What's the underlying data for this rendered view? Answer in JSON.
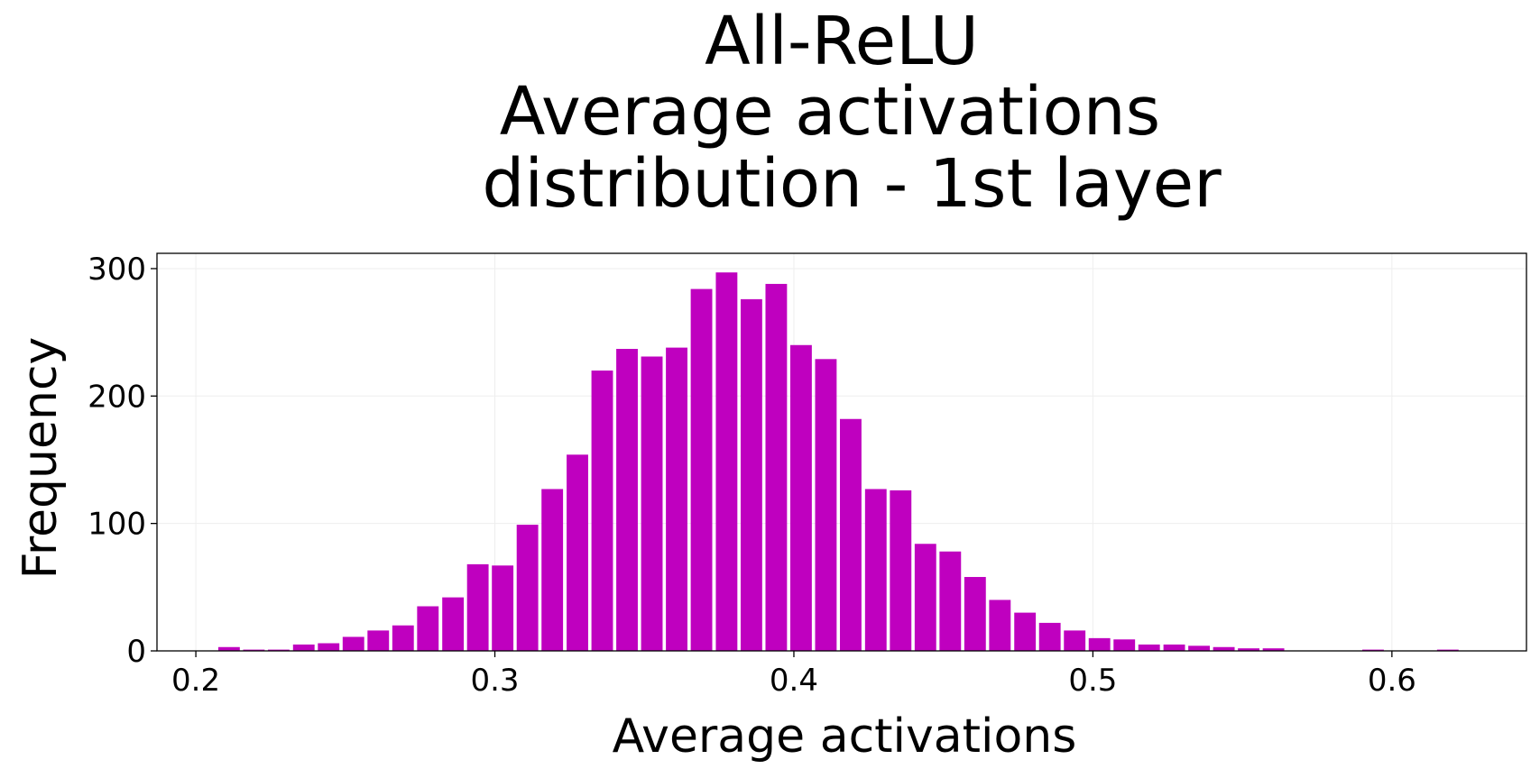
{
  "chart_data": {
    "type": "bar",
    "title_lines": [
      "All-ReLU",
      "Average activations",
      "distribution - 1st layer"
    ],
    "xlabel": "Average activations",
    "ylabel": "Frequency",
    "xlim": [
      0.187,
      0.645
    ],
    "ylim": [
      0,
      312
    ],
    "xticks": [
      0.2,
      0.3,
      0.4,
      0.5,
      0.6
    ],
    "xtick_labels": [
      "0.2",
      "0.3",
      "0.4",
      "0.5",
      "0.6"
    ],
    "yticks": [
      0,
      100,
      200,
      300
    ],
    "ytick_labels": [
      "0",
      "100",
      "200",
      "300"
    ],
    "grid": true,
    "bar_color": "#bf00bf",
    "bar_width": 0.0072,
    "x": [
      0.2111,
      0.2194,
      0.2277,
      0.2361,
      0.2444,
      0.2527,
      0.261,
      0.2693,
      0.2776,
      0.286,
      0.2943,
      0.3026,
      0.3109,
      0.3192,
      0.3276,
      0.3359,
      0.3442,
      0.3525,
      0.3608,
      0.3691,
      0.3775,
      0.3858,
      0.3941,
      0.4024,
      0.4107,
      0.419,
      0.4274,
      0.4357,
      0.444,
      0.4523,
      0.4606,
      0.4689,
      0.4773,
      0.4856,
      0.4939,
      0.5022,
      0.5105,
      0.5188,
      0.5272,
      0.5355,
      0.5438,
      0.5521,
      0.5604,
      0.5687,
      0.5771,
      0.5854,
      0.5937,
      0.602,
      0.6103,
      0.6187
    ],
    "values": [
      3,
      1,
      1,
      5,
      6,
      11,
      16,
      20,
      35,
      42,
      68,
      67,
      99,
      127,
      154,
      220,
      237,
      231,
      238,
      284,
      297,
      276,
      288,
      240,
      229,
      182,
      127,
      126,
      84,
      78,
      58,
      40,
      30,
      22,
      16,
      10,
      9,
      5,
      5,
      4,
      3,
      2,
      2,
      0,
      0,
      0,
      1,
      0,
      0,
      1
    ]
  }
}
